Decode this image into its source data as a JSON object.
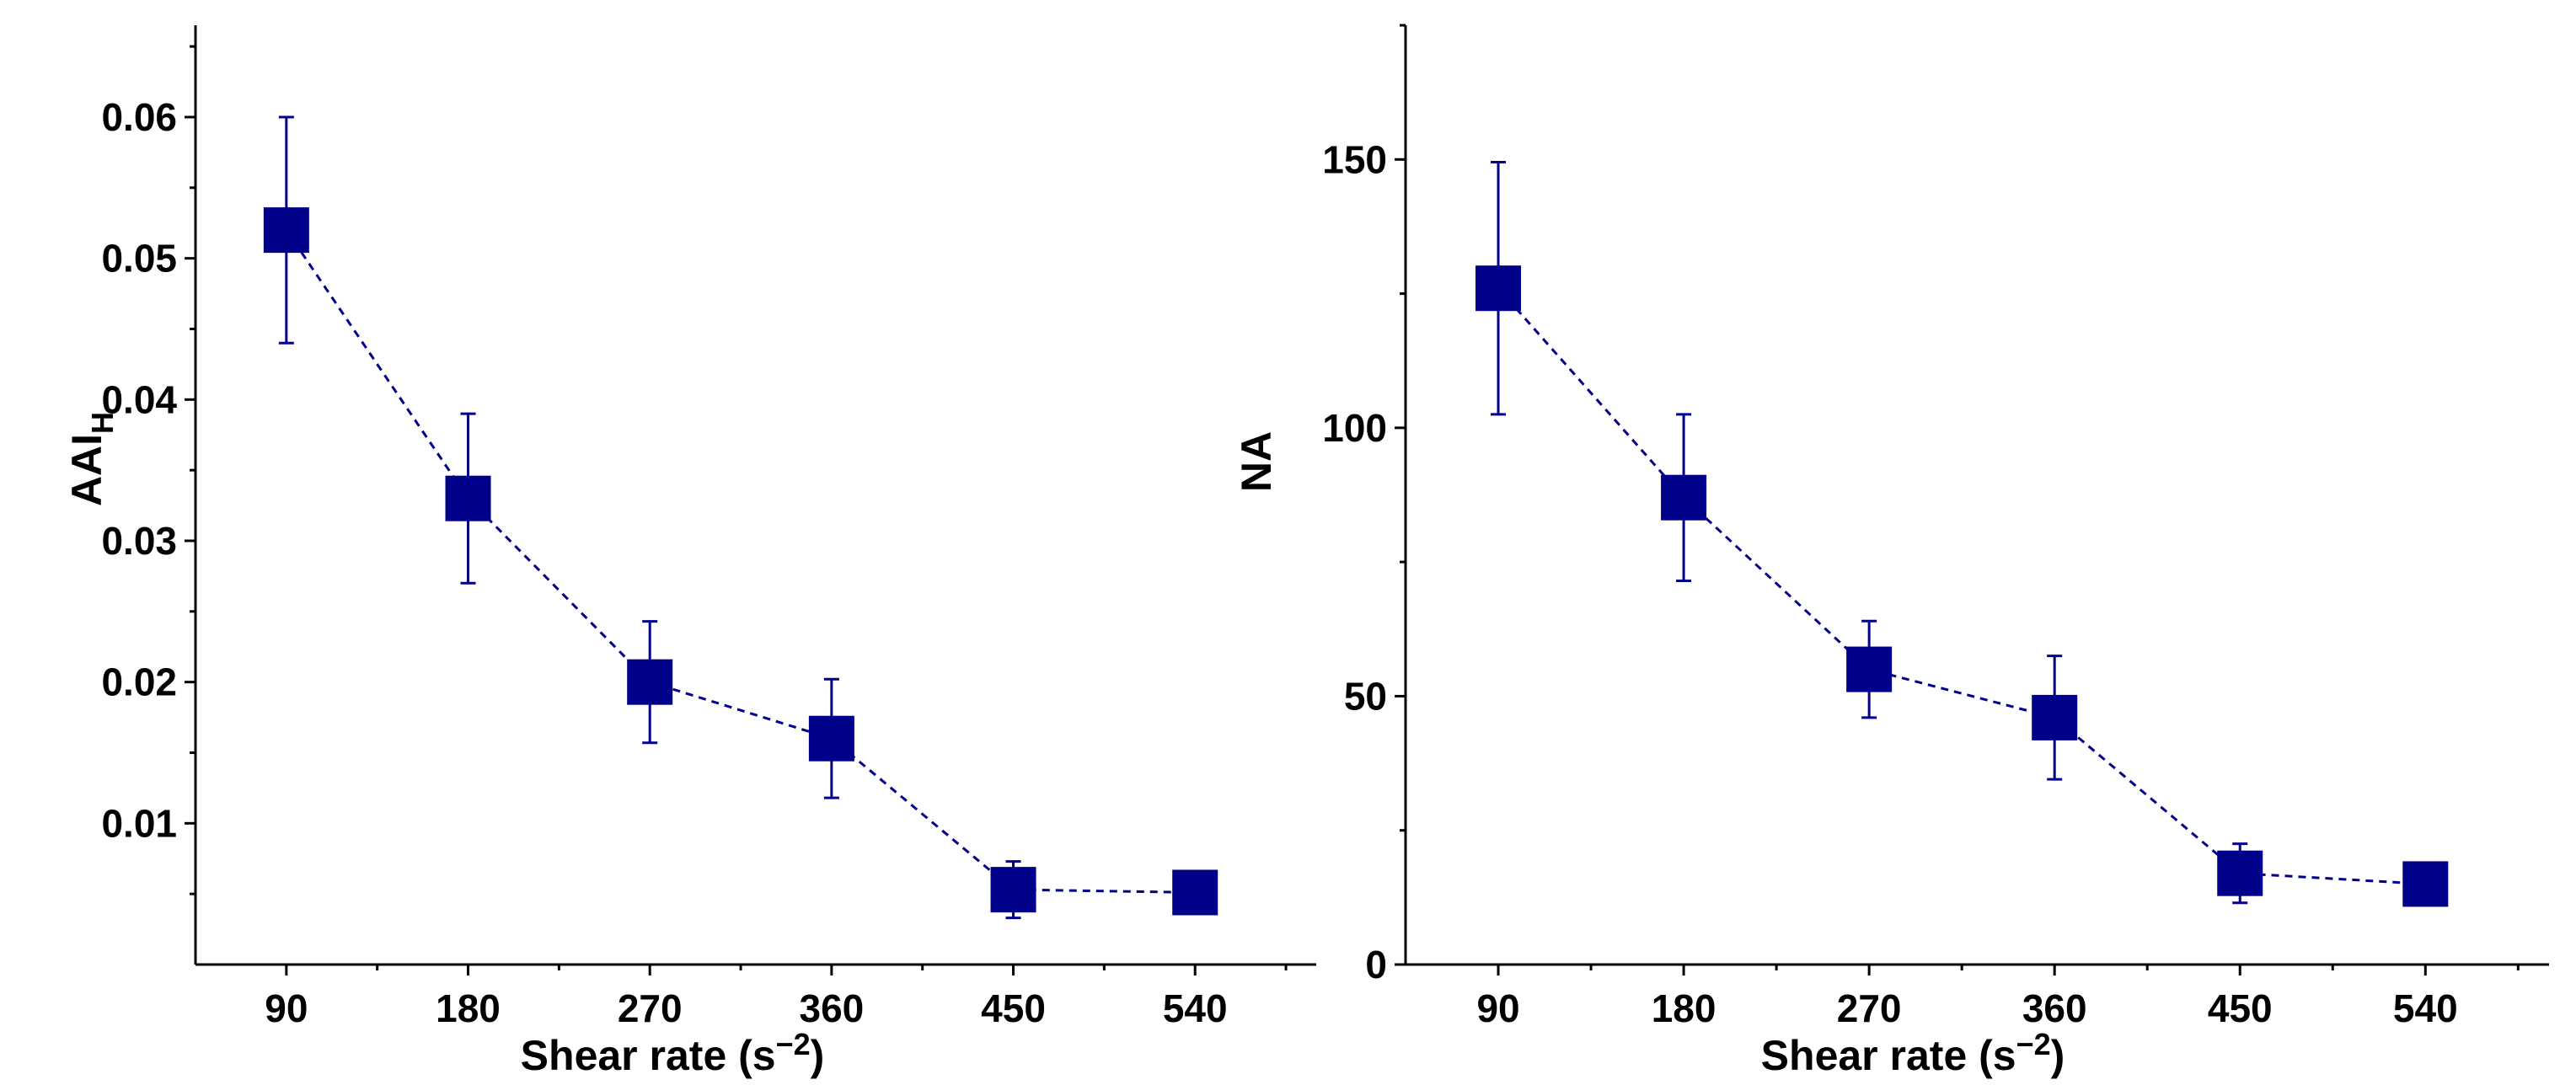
{
  "chart_data": [
    {
      "type": "line",
      "title": "",
      "x": [
        90,
        180,
        270,
        360,
        450,
        540
      ],
      "categories": [
        "90",
        "180",
        "270",
        "360",
        "450",
        "540"
      ],
      "series": [
        {
          "name": "AAI_H",
          "values": [
            0.052,
            0.033,
            0.02,
            0.016,
            0.0053,
            0.0051
          ],
          "error": [
            0.008,
            0.006,
            0.0043,
            0.0042,
            0.002,
            0.0005
          ]
        }
      ],
      "xlabel": {
        "main": "Shear rate (s",
        "sup": "−2",
        "close": ")"
      },
      "ylabel": {
        "main": "AAI",
        "sub": "H"
      },
      "xlim": [
        45,
        600
      ],
      "ylim": [
        0,
        0.0665
      ],
      "yticks": [
        0.01,
        0.02,
        0.03,
        0.04,
        0.05,
        0.06
      ],
      "ytick_labels": [
        "0.01",
        "0.02",
        "0.03",
        "0.04",
        "0.05",
        "0.06"
      ],
      "ymin_ticks": [
        0.005,
        0.015,
        0.025,
        0.035,
        0.045,
        0.055,
        0.065
      ],
      "xticks": [
        90,
        180,
        270,
        360,
        450,
        540
      ],
      "xtick_labels": [
        "90",
        "180",
        "270",
        "360",
        "450",
        "540"
      ],
      "xmin_ticks": [
        135,
        225,
        315,
        405,
        495,
        585
      ],
      "marker": "square",
      "linestyle": "dashed",
      "color": "#00008B"
    },
    {
      "type": "line",
      "title": "",
      "x": [
        90,
        180,
        270,
        360,
        450,
        540
      ],
      "categories": [
        "90",
        "180",
        "270",
        "360",
        "450",
        "540"
      ],
      "series": [
        {
          "name": "NA",
          "values": [
            126,
            87,
            55,
            46,
            17,
            15
          ],
          "error": [
            23.5,
            15.5,
            9,
            11.5,
            5.5,
            0
          ]
        }
      ],
      "xlabel": {
        "main": "Shear rate (s",
        "sup": "−2",
        "close": ")"
      },
      "ylabel": {
        "main": "NA",
        "sub": ""
      },
      "xlim": [
        45,
        600
      ],
      "ylim": [
        0,
        175
      ],
      "yticks": [
        0,
        50,
        100,
        150
      ],
      "ytick_labels": [
        "0",
        "50",
        "100",
        "150"
      ],
      "ymin_ticks": [
        25,
        75,
        125,
        175
      ],
      "xticks": [
        90,
        180,
        270,
        360,
        450,
        540
      ],
      "xtick_labels": [
        "90",
        "180",
        "270",
        "360",
        "450",
        "540"
      ],
      "xmin_ticks": [
        135,
        225,
        315,
        405,
        495,
        585
      ],
      "marker": "square",
      "linestyle": "dashed",
      "color": "#00008B"
    }
  ]
}
